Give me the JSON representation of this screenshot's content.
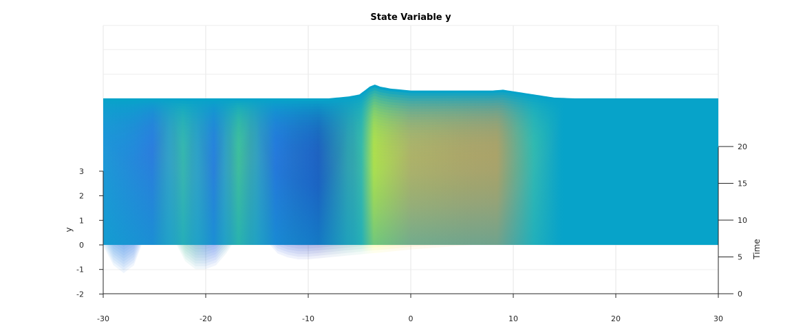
{
  "chart_data": {
    "type": "surface",
    "title": "State Variable y",
    "xlabel": "",
    "ylabel": "y",
    "zlabel": "Time",
    "xlim": [
      -30,
      30
    ],
    "ylim": [
      -2,
      3
    ],
    "timelim": [
      0,
      20
    ],
    "x_ticks": [
      -30,
      -20,
      -10,
      0,
      10,
      20,
      30
    ],
    "y_ticks": [
      -2,
      -1,
      0,
      1,
      2,
      3
    ],
    "time_ticks": [
      0,
      5,
      10,
      15,
      20
    ],
    "grid": true,
    "colormap": "parula",
    "colormap_colors": [
      "#3e26a8",
      "#2f5ff2",
      "#12b4d3",
      "#57cc89",
      "#f2c236",
      "#f9fb15"
    ],
    "surface_fill_color": "#07a3c9",
    "surface": {
      "time_start": 0,
      "time_end": 20,
      "initial_profile": {
        "x": [
          -30,
          -29,
          -28,
          -27,
          -26,
          -25,
          -24.5,
          -24,
          -23,
          -22,
          -21,
          -20,
          -19,
          -18,
          -17,
          -16,
          -15,
          -14,
          -13,
          -12,
          -11,
          -10,
          -8,
          -6,
          -4,
          -3,
          0,
          5,
          8,
          9,
          10,
          12,
          14,
          16,
          20,
          25,
          30
        ],
        "y": [
          0,
          -0.5,
          -0.7,
          -0.5,
          0.2,
          0.6,
          0.65,
          0.5,
          0.1,
          -0.4,
          -0.6,
          -0.6,
          -0.5,
          -0.2,
          0.2,
          0.6,
          0.5,
          0.1,
          -0.2,
          -0.3,
          -0.35,
          -0.35,
          -0.3,
          -0.25,
          -0.2,
          -0.18,
          -0.1,
          0,
          0.05,
          0.05,
          0.05,
          0.02,
          0,
          0,
          0,
          0,
          0
        ]
      },
      "final_profile": {
        "x": [
          -30,
          -25,
          -20,
          -15,
          -10,
          -8,
          -6,
          -5,
          -4,
          -3.5,
          -3,
          -2,
          0,
          2,
          5,
          8,
          9,
          10,
          12,
          14,
          16,
          20,
          25,
          30
        ],
        "y": [
          0,
          0,
          0,
          0,
          0,
          0,
          0.05,
          0.1,
          0.3,
          0.35,
          0.3,
          0.25,
          0.2,
          0.2,
          0.2,
          0.2,
          0.22,
          0.18,
          0.1,
          0.02,
          0,
          0,
          0,
          0
        ]
      }
    }
  }
}
